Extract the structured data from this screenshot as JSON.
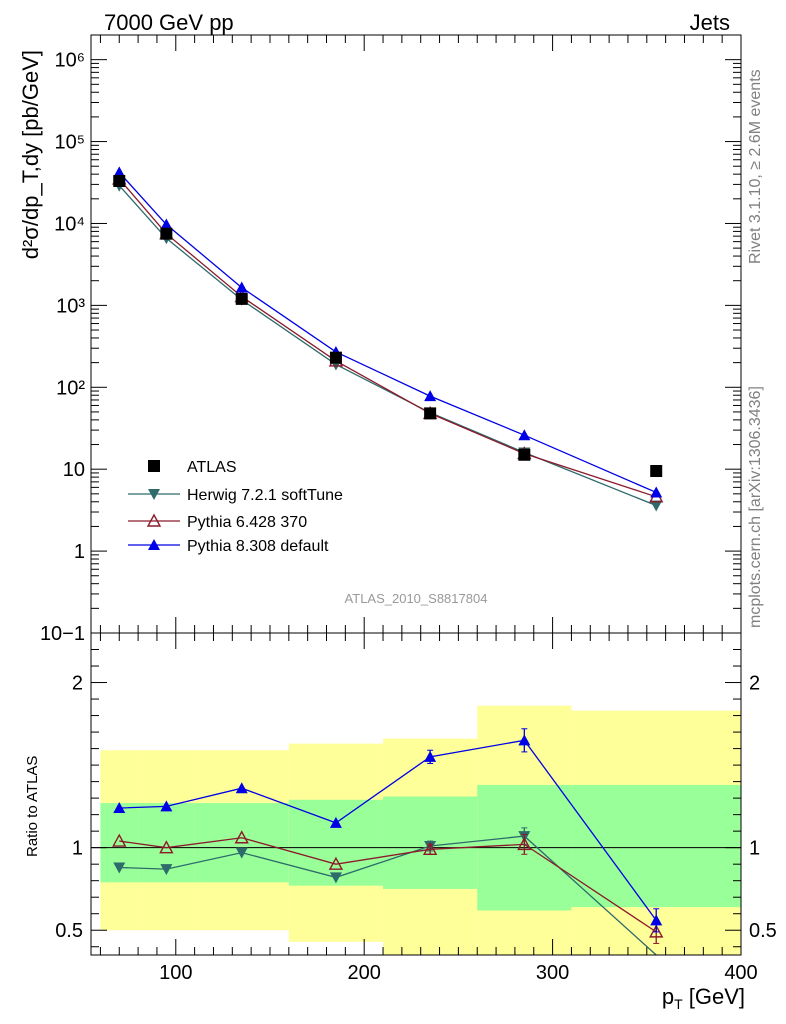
{
  "header": {
    "left": "7000 GeV pp",
    "right": "Jets"
  },
  "side": {
    "top": "Rivet 3.1.10, ≥ 2.6M events",
    "bottom": "mcplots.cern.ch [arXiv:1306.3436]"
  },
  "watermark": "ATLAS_2010_S8817804",
  "colors": {
    "herwig": "#2e6b6b",
    "pythia6": "#8b1a2b",
    "pythia8": "#0000e6",
    "band_inner": "#99ff99",
    "band_outer": "#ffff99"
  },
  "chart_data": [
    {
      "type": "line",
      "name": "main",
      "ylabel": "d²σ/dp_T,dy [pb/GeV]",
      "yscale": "log",
      "xlim": [
        55,
        400
      ],
      "ylim": [
        0.1,
        2000000
      ],
      "ytick_labels": [
        "10−1",
        "1",
        "10",
        "10²",
        "10³",
        "10⁴",
        "10⁵",
        "10⁶"
      ],
      "x": [
        70,
        95,
        135,
        185,
        235,
        285,
        355
      ],
      "series": [
        {
          "name": "ATLAS",
          "values": [
            33000,
            7500,
            1200,
            230,
            48,
            15,
            9.5
          ]
        },
        {
          "name": "Herwig 7.2.1 softTune",
          "values": [
            29000,
            6600,
            1170,
            190,
            49,
            16,
            3.6
          ]
        },
        {
          "name": "Pythia 6.428 370",
          "values": [
            35000,
            7500,
            1280,
            210,
            48,
            15.5,
            4.6
          ]
        },
        {
          "name": "Pythia 8.308 default",
          "values": [
            42000,
            9700,
            1650,
            270,
            78,
            26,
            5.2
          ]
        }
      ]
    },
    {
      "type": "line",
      "name": "ratio",
      "ylabel": "Ratio to ATLAS",
      "xlabel": "p_T [GeV]",
      "xlim": [
        55,
        400
      ],
      "ylim": [
        0.35,
        2.3
      ],
      "x_tick_labels": [
        "100",
        "200",
        "300",
        "400"
      ],
      "y_tick_labels": [
        "0.5",
        "1",
        "2"
      ],
      "bins": [
        [
          60,
          80
        ],
        [
          80,
          110
        ],
        [
          110,
          160
        ],
        [
          160,
          210
        ],
        [
          210,
          260
        ],
        [
          260,
          310
        ],
        [
          310,
          400
        ]
      ],
      "band_inner": [
        [
          0.79,
          1.27
        ],
        [
          0.79,
          1.27
        ],
        [
          0.79,
          1.27
        ],
        [
          0.77,
          1.29
        ],
        [
          0.75,
          1.31
        ],
        [
          0.62,
          1.38
        ],
        [
          0.64,
          1.38
        ]
      ],
      "band_outer": [
        [
          0.5,
          1.59
        ],
        [
          0.5,
          1.59
        ],
        [
          0.5,
          1.59
        ],
        [
          0.43,
          1.63
        ],
        [
          0.35,
          1.66
        ],
        [
          0.35,
          1.86
        ],
        [
          0.35,
          1.83
        ]
      ],
      "x": [
        70,
        95,
        135,
        185,
        235,
        285,
        355
      ],
      "series": [
        {
          "name": "Herwig 7.2.1 softTune",
          "values": [
            0.88,
            0.87,
            0.97,
            0.82,
            1.01,
            1.07,
            0.35
          ],
          "errors": [
            0,
            0,
            0,
            0,
            0.03,
            0.05,
            0
          ]
        },
        {
          "name": "Pythia 6.428 370",
          "values": [
            1.04,
            1.0,
            1.06,
            0.9,
            0.99,
            1.02,
            0.49
          ],
          "errors": [
            0,
            0,
            0,
            0,
            0.03,
            0.06,
            0.07
          ]
        },
        {
          "name": "Pythia 8.308 default",
          "values": [
            1.24,
            1.25,
            1.36,
            1.15,
            1.55,
            1.65,
            0.56
          ],
          "errors": [
            0,
            0,
            0,
            0,
            0.04,
            0.07,
            0.07
          ]
        }
      ]
    }
  ]
}
